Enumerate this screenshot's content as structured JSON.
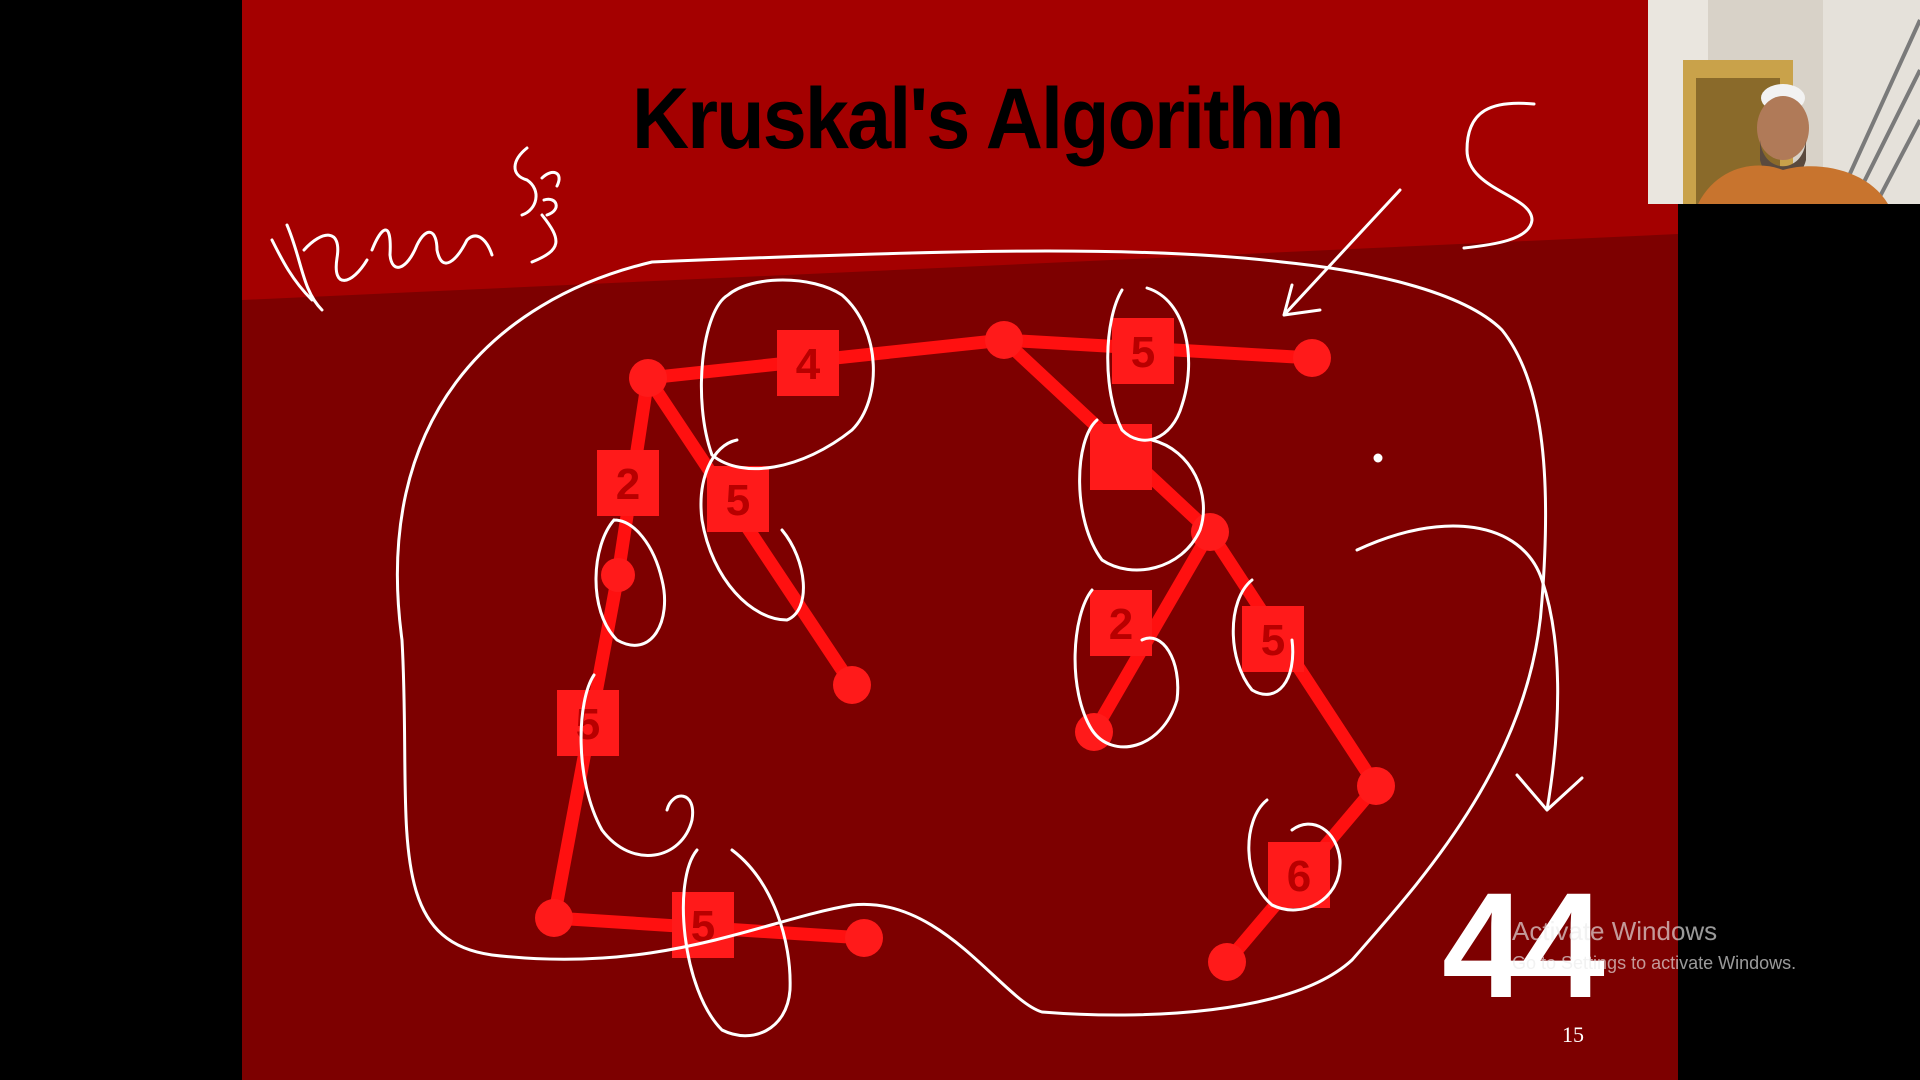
{
  "slide": {
    "title": "Kruskal's Algorithm",
    "big_count": "44",
    "page_number": "15"
  },
  "graph": {
    "edge_color": "#ff0000",
    "weight_labels": [
      "4",
      "5",
      "2",
      "5",
      "5",
      "5",
      "2",
      "5",
      "6"
    ]
  },
  "windows_watermark": {
    "title": "Activate Windows",
    "subtitle": "Go to Settings to activate Windows."
  },
  "colors": {
    "slide_background": "#7d0000",
    "slide_band": "#a40000",
    "ink": "#ffffff"
  },
  "webcam": {
    "icon": "person-webcam-icon"
  }
}
